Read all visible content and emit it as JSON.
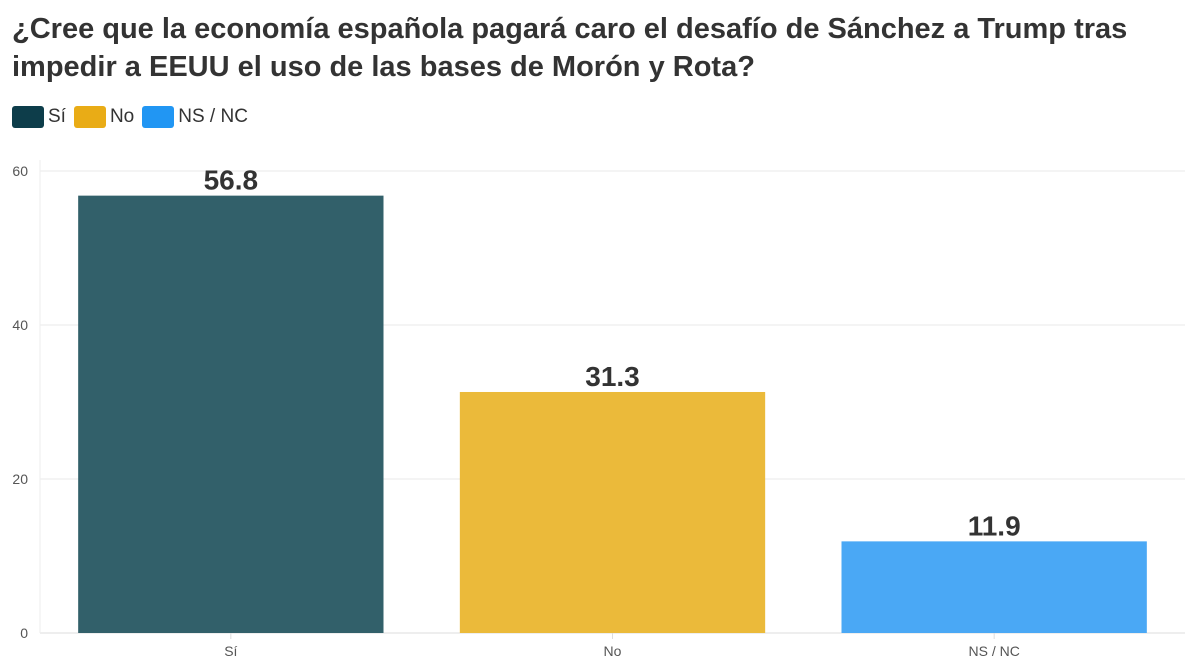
{
  "chart_data": {
    "type": "bar",
    "title": "¿Cree que la economía española pagará caro el desafío de Sánchez a Trump tras impedir a EEUU el uso de las bases de Morón y Rota?",
    "categories": [
      "Sí",
      "No",
      "NS / NC"
    ],
    "values": [
      56.8,
      31.3,
      11.9
    ],
    "value_labels": [
      "56.8",
      "31.3",
      "11.9"
    ],
    "colors": [
      "#32606a",
      "#ebba3a",
      "#4aa8f5"
    ],
    "legend": [
      {
        "label": "Sí",
        "color": "#0d3d4a"
      },
      {
        "label": "No",
        "color": "#e9ac16"
      },
      {
        "label": "NS / NC",
        "color": "#2196f3"
      }
    ],
    "legend_position": "top-left",
    "ylim": [
      0,
      60
    ],
    "yticks": [
      "0",
      "20",
      "40",
      "60"
    ],
    "grid": true,
    "xlabel": "",
    "ylabel": ""
  }
}
